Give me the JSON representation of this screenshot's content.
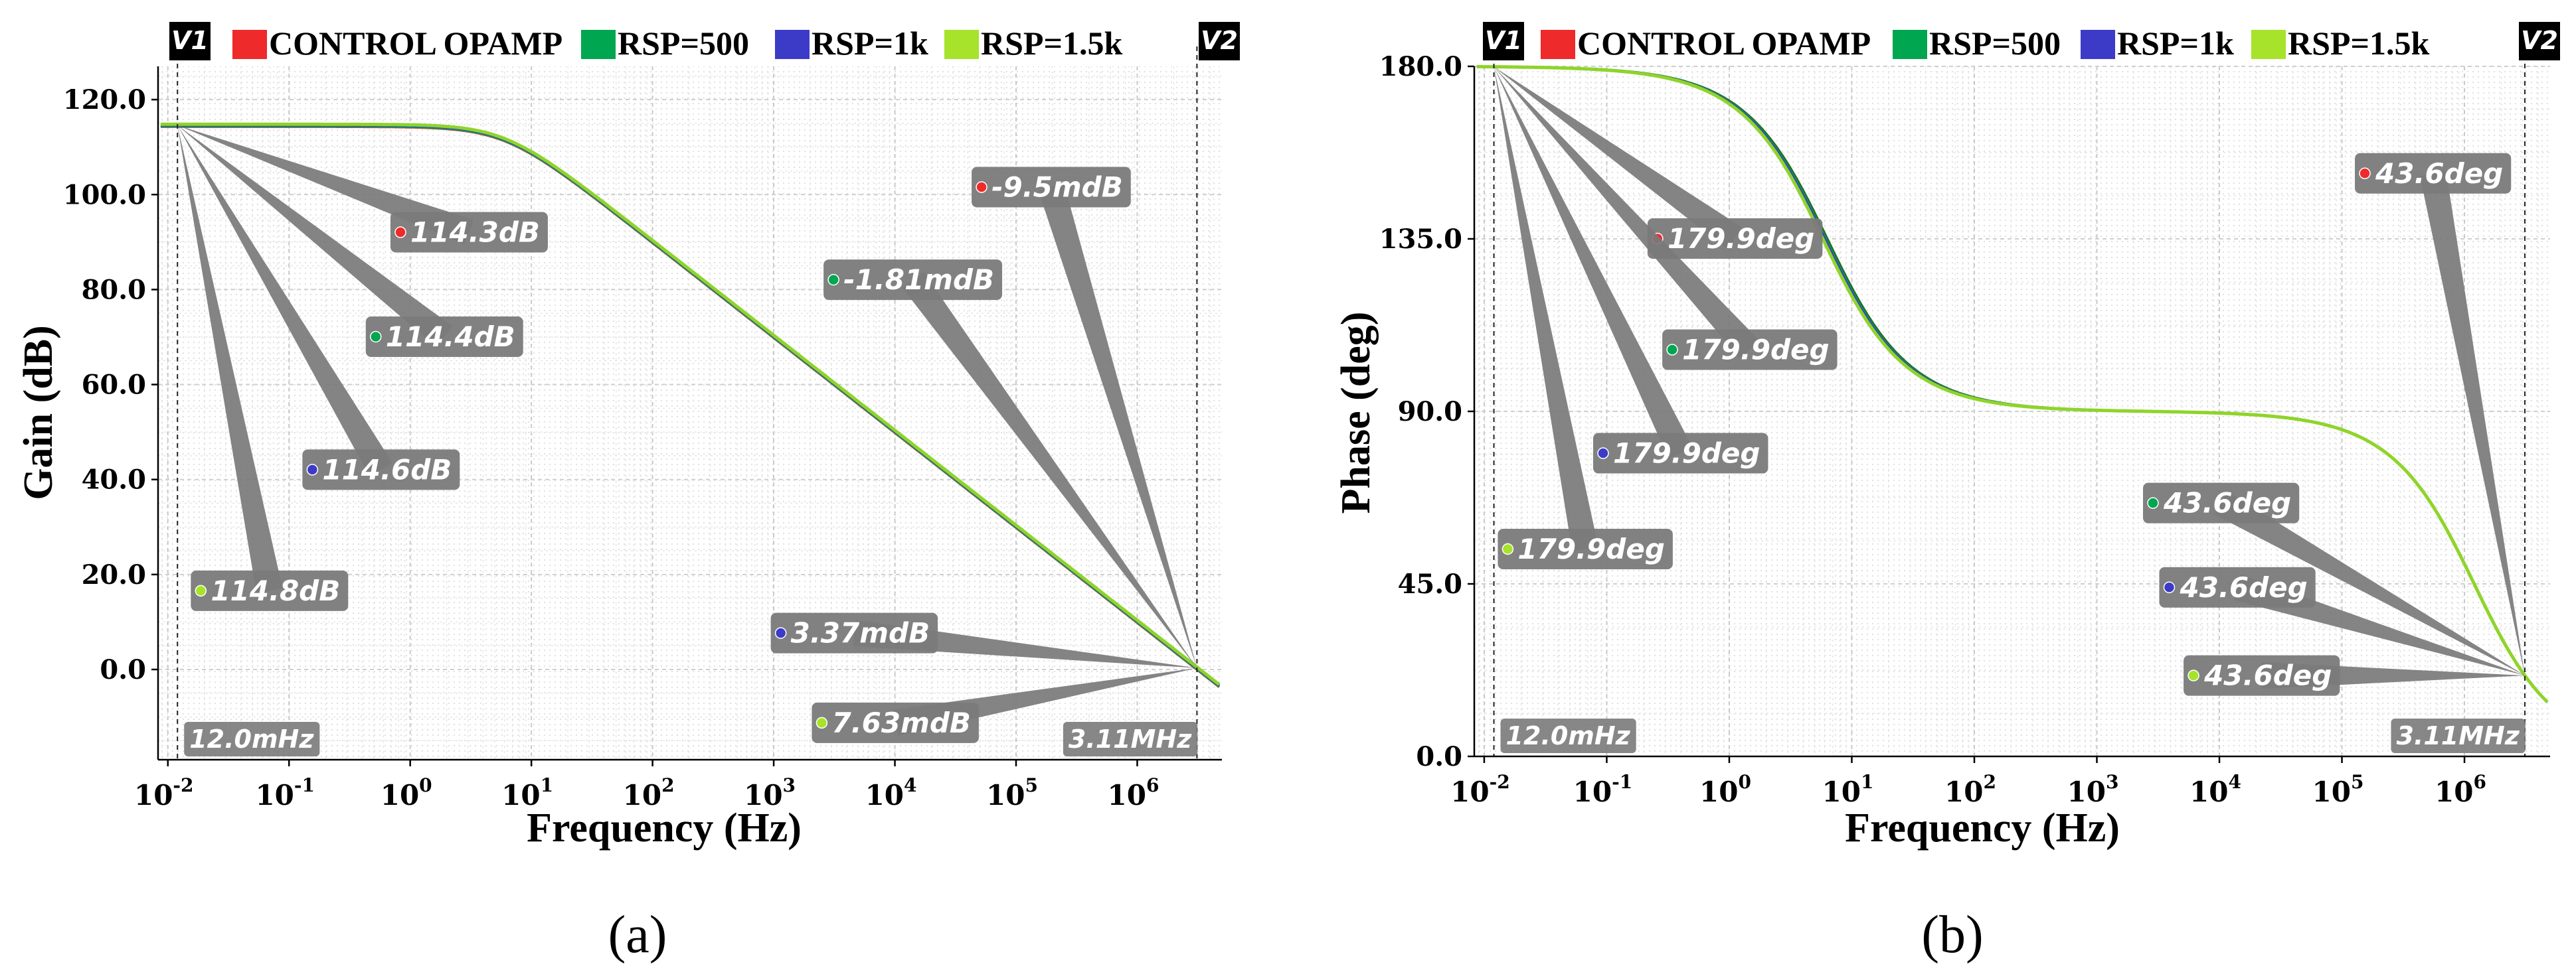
{
  "legend": {
    "v1": "V1",
    "v2": "V2",
    "items": [
      {
        "label": "CONTROL OPAMP",
        "color": "#ee2a2a"
      },
      {
        "label": "RSP=500",
        "color": "#00a650"
      },
      {
        "label": "RSP=1k",
        "color": "#3b3bc8"
      },
      {
        "label": "RSP=1.5k",
        "color": "#a6e32a"
      }
    ]
  },
  "chart_data": [
    {
      "type": "line",
      "caption": "(a)",
      "xlabel": "Frequency (Hz)",
      "ylabel": "Gain (dB)",
      "xscale": "log",
      "xlim": [
        0.0083,
        5000000
      ],
      "ylim": [
        -19,
        127
      ],
      "yticks": [
        0,
        20,
        40,
        60,
        80,
        100,
        120
      ],
      "ytick_labels": [
        "0.0",
        "20.0",
        "40.0",
        "60.0",
        "80.0",
        "100.0",
        "120.0"
      ],
      "xticks_exp": [
        "-2",
        "-1",
        "0",
        "1",
        "2",
        "3",
        "4",
        "5",
        "6"
      ],
      "cursor_v1": {
        "x": 0.012,
        "label": "12.0mHz"
      },
      "cursor_v2": {
        "x": 3110000,
        "label": "3.11MHz"
      },
      "model": {
        "dc_gain": 114.6,
        "poles_hz": [
          6
        ]
      },
      "series": [
        {
          "name": "CONTROL OPAMP",
          "color": "#ee2a2a",
          "dc_gain": 114.3,
          "poles_hz": [
            6
          ]
        },
        {
          "name": "RSP=500",
          "color": "#00a650",
          "dc_gain": 114.4,
          "poles_hz": [
            6
          ]
        },
        {
          "name": "RSP=1k",
          "color": "#3b3bc8",
          "dc_gain": 114.6,
          "poles_hz": [
            6
          ]
        },
        {
          "name": "RSP=1.5k",
          "color": "#8fd42a",
          "dc_gain": 114.8,
          "poles_hz": [
            6
          ]
        }
      ],
      "markers": [
        {
          "text": "114.3dB",
          "color": "#ee2a2a",
          "x": 0.8,
          "y": 92,
          "anchor": "v1"
        },
        {
          "text": "114.4dB",
          "color": "#00a650",
          "x": 0.5,
          "y": 70,
          "anchor": "v1"
        },
        {
          "text": "114.6dB",
          "color": "#3b3bc8",
          "x": 0.15,
          "y": 42,
          "anchor": "v1"
        },
        {
          "text": "114.8dB",
          "color": "#a6e32a",
          "x": 0.018,
          "y": 16.5,
          "anchor": "v1"
        },
        {
          "text": "-9.5mdB",
          "color": "#ee2a2a",
          "x": 50000,
          "y": 101.5,
          "anchor": "v2"
        },
        {
          "text": "-1.81mdB",
          "color": "#00a650",
          "x": 3000,
          "y": 82,
          "anchor": "v2"
        },
        {
          "text": "3.37mdB",
          "color": "#3b3bc8",
          "x": 1100,
          "y": 7.6,
          "anchor": "v2"
        },
        {
          "text": "7.63mdB",
          "color": "#a6e32a",
          "x": 2400,
          "y": -11.3,
          "anchor": "v2"
        }
      ]
    },
    {
      "type": "line",
      "caption": "(b)",
      "xlabel": "Frequency (Hz)",
      "ylabel": "Phase (deg)",
      "xscale": "log",
      "xlim": [
        0.0083,
        5000000
      ],
      "ylim": [
        0,
        180
      ],
      "yticks": [
        0,
        45,
        90,
        135,
        180
      ],
      "ytick_labels": [
        "0.0",
        "45.0",
        "90.0",
        "135.0",
        "180.0"
      ],
      "xticks_exp": [
        "-2",
        "-1",
        "0",
        "1",
        "2",
        "3",
        "4",
        "5",
        "6"
      ],
      "cursor_v1": {
        "x": 0.012,
        "label": "12.0mHz"
      },
      "cursor_v2": {
        "x": 3110000,
        "label": "3.11MHz"
      },
      "model": {
        "base": 180,
        "poles_hz": [
          6,
          1200000
        ]
      },
      "series": [
        {
          "name": "CONTROL OPAMP",
          "color": "#1e6e1e",
          "poles_hz": [
            6.3,
            1200000
          ]
        },
        {
          "name": "RSP=500",
          "color": "#00a650",
          "poles_hz": [
            6.1,
            1200000
          ]
        },
        {
          "name": "RSP=1k",
          "color": "#3b3bc8",
          "poles_hz": [
            6,
            1200000
          ]
        },
        {
          "name": "RSP=1.5k",
          "color": "#8fd42a",
          "poles_hz": [
            5.8,
            1200000
          ]
        }
      ],
      "markers": [
        {
          "text": "179.9deg",
          "color": "#ee2a2a",
          "x": 0.25,
          "y": 135,
          "anchor": "v1"
        },
        {
          "text": "179.9deg",
          "color": "#00a650",
          "x": 0.33,
          "y": 106,
          "anchor": "v1"
        },
        {
          "text": "179.9deg",
          "color": "#3b3bc8",
          "x": 0.09,
          "y": 79,
          "anchor": "v1"
        },
        {
          "text": "179.9deg",
          "color": "#a6e32a",
          "x": 0.015,
          "y": 54,
          "anchor": "v1"
        },
        {
          "text": "43.6deg",
          "color": "#ee2a2a",
          "x": 150000,
          "y": 152,
          "anchor": "v2"
        },
        {
          "text": "43.6deg",
          "color": "#00a650",
          "x": 2800,
          "y": 66,
          "anchor": "v2"
        },
        {
          "text": "43.6deg",
          "color": "#3b3bc8",
          "x": 3800,
          "y": 44,
          "anchor": "v2"
        },
        {
          "text": "43.6deg",
          "color": "#a6e32a",
          "x": 6000,
          "y": 21,
          "anchor": "v2"
        }
      ]
    }
  ]
}
